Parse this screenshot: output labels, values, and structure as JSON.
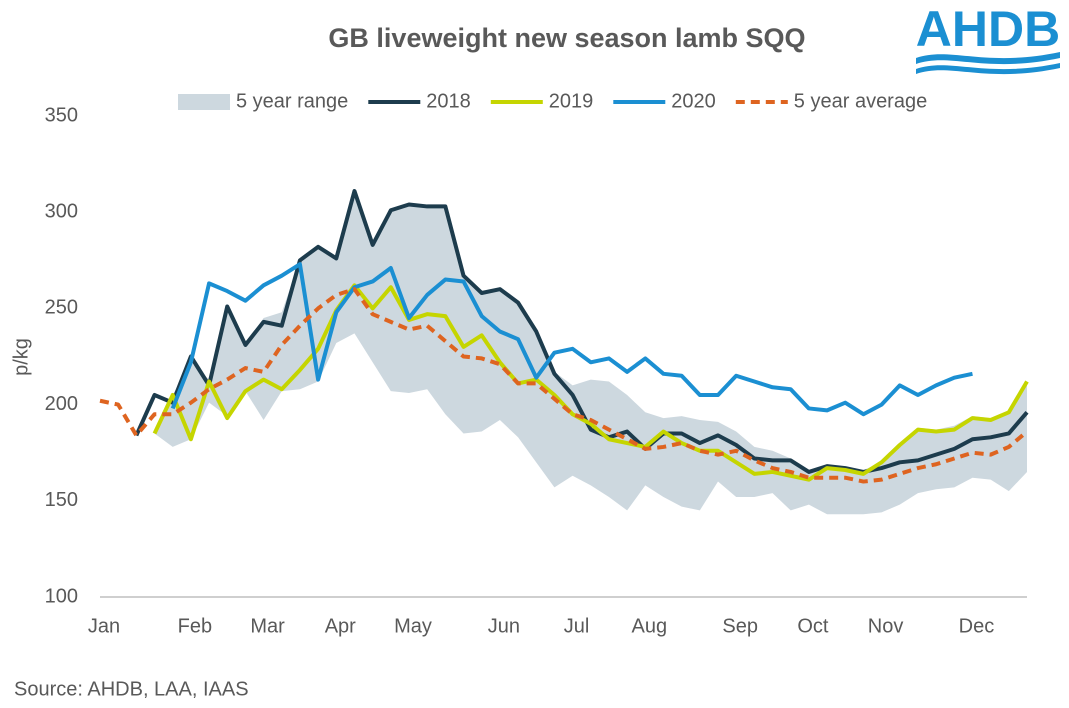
{
  "chart_data": {
    "type": "line",
    "title": "GB liveweight new season lamb SQQ",
    "logo": "AHDB",
    "ylabel": "p/kg",
    "source": "Source: AHDB, LAA, IAAS",
    "categories": [
      "Jan",
      null,
      null,
      null,
      null,
      "Feb",
      null,
      null,
      null,
      "Mar",
      null,
      null,
      null,
      "Apr",
      null,
      null,
      null,
      "May",
      null,
      null,
      null,
      null,
      "Jun",
      null,
      null,
      null,
      "Jul",
      null,
      null,
      null,
      "Aug",
      null,
      null,
      null,
      null,
      "Sep",
      null,
      null,
      null,
      "Oct",
      null,
      null,
      null,
      "Nov",
      null,
      null,
      null,
      null,
      "Dec",
      null,
      null,
      null
    ],
    "ylim": [
      100,
      350
    ],
    "yticks": [
      100,
      150,
      200,
      250,
      300,
      350
    ],
    "grid": false,
    "legend": "top",
    "range": {
      "name": "5 year range",
      "color": "#cdd8df",
      "low": [
        null,
        null,
        null,
        185,
        178,
        182,
        201,
        194,
        207,
        192,
        207,
        208,
        212,
        232,
        237,
        222,
        207,
        206,
        208,
        195,
        185,
        186,
        192,
        183,
        170,
        157,
        163,
        158,
        152,
        145,
        158,
        152,
        147,
        145,
        160,
        152,
        152,
        154,
        145,
        148,
        143,
        143,
        143,
        144,
        148,
        154,
        156,
        157,
        162,
        161,
        155,
        165
      ],
      "high": [
        null,
        null,
        null,
        186,
        205,
        222,
        213,
        251,
        231,
        245,
        248,
        275,
        282,
        276,
        311,
        283,
        301,
        304,
        303,
        303,
        267,
        258,
        260,
        253,
        238,
        217,
        210,
        213,
        212,
        205,
        196,
        193,
        194,
        192,
        191,
        186,
        178,
        176,
        172,
        166,
        168,
        167,
        166,
        170,
        178,
        188,
        187,
        189,
        194,
        193,
        197,
        212
      ]
    },
    "series": [
      {
        "name": "2018",
        "color": "#1d3c4d",
        "dashed": false,
        "values": [
          null,
          null,
          184,
          205,
          201,
          225,
          210,
          251,
          231,
          243,
          241,
          275,
          282,
          276,
          311,
          283,
          301,
          304,
          303,
          303,
          267,
          258,
          260,
          253,
          238,
          216,
          205,
          187,
          183,
          186,
          177,
          185,
          185,
          180,
          184,
          179,
          172,
          171,
          171,
          165,
          168,
          167,
          165,
          167,
          170,
          171,
          174,
          177,
          182,
          183,
          185,
          196
        ]
      },
      {
        "name": "2019",
        "color": "#c5d500",
        "dashed": false,
        "values": [
          null,
          null,
          null,
          185,
          205,
          182,
          212,
          193,
          207,
          213,
          208,
          218,
          229,
          249,
          262,
          250,
          261,
          244,
          247,
          246,
          230,
          236,
          222,
          211,
          213,
          205,
          195,
          190,
          182,
          180,
          178,
          186,
          180,
          176,
          176,
          170,
          164,
          165,
          163,
          161,
          167,
          166,
          164,
          170,
          179,
          187,
          186,
          187,
          193,
          192,
          196,
          212
        ]
      },
      {
        "name": "2020",
        "color": "#1b8fd2",
        "dashed": false,
        "values": [
          null,
          null,
          null,
          null,
          198,
          222,
          263,
          259,
          254,
          262,
          267,
          273,
          213,
          248,
          261,
          264,
          271,
          245,
          257,
          265,
          264,
          246,
          238,
          234,
          214,
          227,
          229,
          222,
          224,
          217,
          224,
          216,
          215,
          205,
          205,
          215,
          212,
          209,
          208,
          198,
          197,
          201,
          195,
          200,
          210,
          205,
          210,
          214,
          216,
          null,
          null,
          null
        ]
      },
      {
        "name": "5 year average",
        "color": "#de6420",
        "dashed": true,
        "values": [
          202,
          200,
          184,
          195,
          195,
          201,
          208,
          213,
          219,
          217,
          231,
          241,
          250,
          257,
          260,
          247,
          243,
          239,
          241,
          233,
          225,
          224,
          221,
          211,
          211,
          203,
          195,
          192,
          187,
          182,
          177,
          178,
          180,
          176,
          174,
          176,
          171,
          167,
          165,
          162,
          162,
          162,
          160,
          161,
          164,
          167,
          169,
          172,
          175,
          174,
          178,
          186
        ]
      }
    ]
  }
}
